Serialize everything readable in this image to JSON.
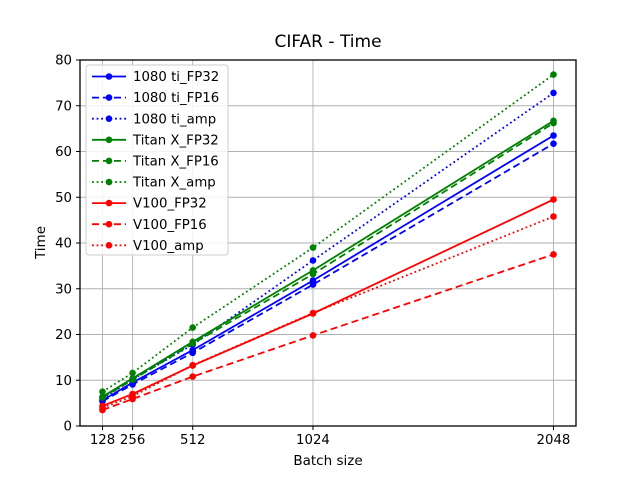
{
  "chart_data": {
    "type": "line",
    "title": "CIFAR - Time",
    "xlabel": "Batch size",
    "ylabel": "Time",
    "x": [
      128,
      256,
      512,
      1024,
      2048
    ],
    "xticks": [
      128,
      256,
      512,
      1024,
      2048
    ],
    "yticks": [
      0,
      10,
      20,
      30,
      40,
      50,
      60,
      70,
      80
    ],
    "xlim": [
      32,
      2144
    ],
    "ylim": [
      0,
      80
    ],
    "grid": true,
    "grid_color": "#b0b0b0",
    "background_color": "#ffffff",
    "spine_color": "#000000",
    "legend": {
      "position": "upper-left",
      "frame": true,
      "border_color": "#cccccc"
    },
    "series": [
      {
        "name": "1080 ti_FP32",
        "color": "#0000ff",
        "style": "solid",
        "marker": "circle",
        "values": [
          5.6,
          9.5,
          16.6,
          31.8,
          63.5
        ]
      },
      {
        "name": "1080 ti_FP16",
        "color": "#0000ff",
        "style": "dashed",
        "marker": "circle",
        "values": [
          5.4,
          9.1,
          16.0,
          30.9,
          61.7
        ]
      },
      {
        "name": "1080 ti_amp",
        "color": "#0000ff",
        "style": "dotted",
        "marker": "circle",
        "values": [
          6.0,
          10.2,
          17.8,
          36.2,
          72.8
        ]
      },
      {
        "name": "Titan X_FP32",
        "color": "#008000",
        "style": "solid",
        "marker": "circle",
        "values": [
          6.4,
          10.4,
          18.4,
          34.0,
          66.7
        ]
      },
      {
        "name": "Titan X_FP16",
        "color": "#008000",
        "style": "dashed",
        "marker": "circle",
        "values": [
          6.2,
          10.1,
          18.0,
          33.2,
          66.2
        ]
      },
      {
        "name": "Titan X_amp",
        "color": "#008000",
        "style": "dotted",
        "marker": "circle",
        "values": [
          7.5,
          11.6,
          21.5,
          39.0,
          76.8
        ]
      },
      {
        "name": "V100_FP32",
        "color": "#ff0000",
        "style": "solid",
        "marker": "circle",
        "values": [
          4.4,
          7.0,
          13.2,
          24.6,
          49.5
        ]
      },
      {
        "name": "V100_FP16",
        "color": "#ff0000",
        "style": "dashed",
        "marker": "circle",
        "values": [
          3.5,
          5.9,
          10.8,
          19.8,
          37.5
        ]
      },
      {
        "name": "V100_amp",
        "color": "#ff0000",
        "style": "dotted",
        "marker": "circle",
        "values": [
          4.0,
          6.5,
          13.3,
          24.7,
          45.8
        ]
      }
    ]
  }
}
